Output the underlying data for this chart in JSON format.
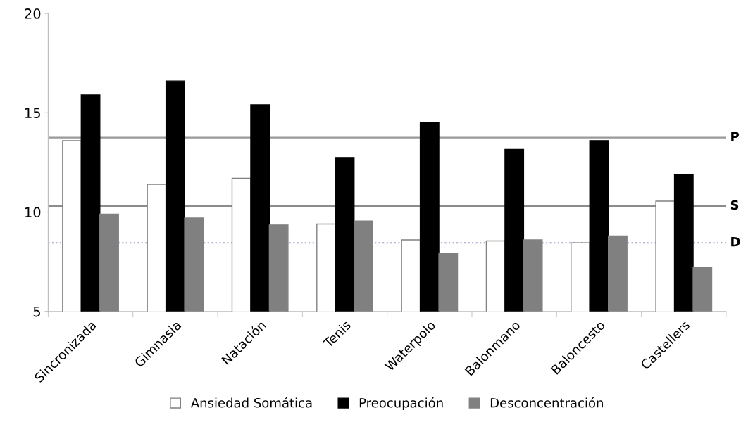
{
  "chart_data": {
    "type": "bar",
    "categories": [
      "Sincronizada",
      "Gimnasia",
      "Natación",
      "Tenis",
      "Waterpolo",
      "Balonmano",
      "Baloncesto",
      "Castellers"
    ],
    "series": [
      {
        "name": "Ansiedad Somática",
        "color": "#ffffff",
        "values": [
          13.6,
          11.4,
          11.7,
          9.4,
          8.6,
          8.55,
          8.45,
          10.55
        ]
      },
      {
        "name": "Preocupación",
        "color": "#000000",
        "values": [
          15.9,
          16.6,
          15.4,
          12.75,
          14.5,
          13.15,
          13.6,
          11.9
        ]
      },
      {
        "name": "Desconcentración",
        "color": "#808080",
        "values": [
          9.9,
          9.7,
          9.35,
          9.55,
          7.9,
          8.6,
          8.8,
          7.2
        ]
      }
    ],
    "ylim": [
      5,
      20
    ],
    "yticks": [
      5,
      10,
      15,
      20
    ],
    "ref_lines": [
      {
        "axis": "y",
        "value": 13.75,
        "label": "P",
        "color": "#999999",
        "line_style": "solid"
      },
      {
        "axis": "y",
        "value": 10.3,
        "label": "S",
        "color": "#8c8c8c",
        "line_style": "solid"
      },
      {
        "axis": "y",
        "value": 8.45,
        "label": "D",
        "color": "#9a9ac8",
        "line_style": "dotted"
      }
    ],
    "grid": false,
    "legend": "bottom"
  }
}
